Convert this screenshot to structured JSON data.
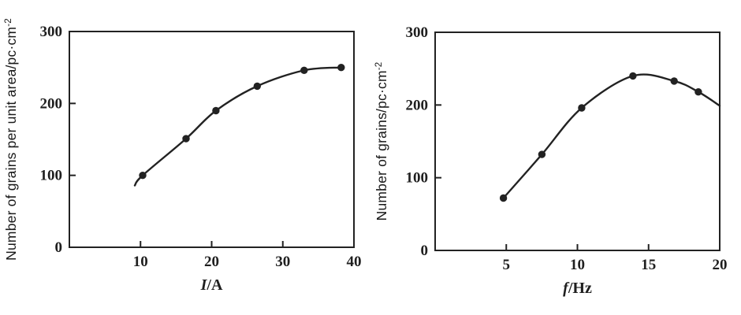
{
  "page": {
    "background": "#ffffff",
    "ink_color": "#222222"
  },
  "chart_data": [
    {
      "type": "line",
      "title": "",
      "xlabel": {
        "variable": "I",
        "rest": "/A"
      },
      "ylabel": {
        "text": "Number of grains per unit area/pc·cm",
        "superscript": "-2"
      },
      "xlim": [
        0,
        40
      ],
      "ylim": [
        0,
        300
      ],
      "xticks": [
        10,
        20,
        30,
        40
      ],
      "yticks": [
        0,
        100,
        200,
        300
      ],
      "grid": false,
      "legend": null,
      "series": [
        {
          "name": "grains-vs-current",
          "marker": "filled-circle",
          "color": "#222222",
          "points": [
            [
              10.3,
              100
            ],
            [
              16.4,
              151
            ],
            [
              20.6,
              190
            ],
            [
              26.4,
              224
            ],
            [
              33,
              246
            ],
            [
              38.2,
              250
            ]
          ],
          "curve_extension_before": [
            [
              9.2,
              86
            ]
          ],
          "curve_extension_after": []
        }
      ]
    },
    {
      "type": "line",
      "title": "",
      "xlabel": {
        "variable": "f",
        "rest": "/Hz"
      },
      "ylabel": {
        "text": "Number of grains/pc·cm",
        "superscript": "-2"
      },
      "xlim": [
        0,
        20
      ],
      "ylim": [
        0,
        300
      ],
      "xticks": [
        5,
        10,
        15,
        20
      ],
      "yticks": [
        0,
        100,
        200,
        300
      ],
      "grid": false,
      "legend": null,
      "series": [
        {
          "name": "grains-vs-frequency",
          "marker": "filled-circle",
          "color": "#222222",
          "points": [
            [
              4.8,
              72
            ],
            [
              7.5,
              132
            ],
            [
              10.3,
              196
            ],
            [
              13.9,
              240
            ],
            [
              16.8,
              233
            ],
            [
              18.5,
              218
            ]
          ],
          "curve_extension_before": [],
          "curve_extension_after": [
            [
              20,
              199
            ]
          ]
        }
      ]
    }
  ]
}
